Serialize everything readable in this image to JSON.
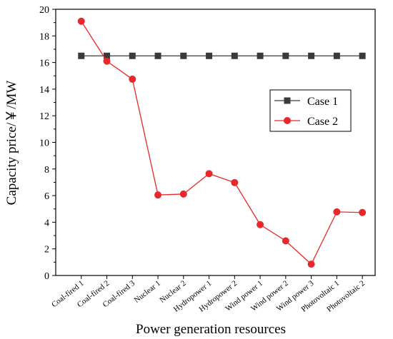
{
  "chart_data": {
    "type": "line",
    "xlabel": "Power generation resources",
    "ylabel": "Capacity price/￥/MW",
    "ylim": [
      0,
      20
    ],
    "yticks": [
      "0",
      "2",
      "4",
      "6",
      "8",
      "10",
      "12",
      "14",
      "16",
      "18",
      "20"
    ],
    "categories": [
      "Coal-fired 1",
      "Coal-fired 2",
      "Coal-fired 3",
      "Nuclear 1",
      "Nuclear 2",
      "Hydropower 1",
      "Hydropower 2",
      "Wind power 1",
      "Wind power 2",
      "Wind power 3",
      "Photovoltaic 1",
      "Photovoltaic 2"
    ],
    "series": [
      {
        "name": "Case 1",
        "color": "#3a3a3a",
        "marker": "square",
        "values": [
          16.5,
          16.5,
          16.5,
          16.5,
          16.5,
          16.5,
          16.5,
          16.5,
          16.5,
          16.5,
          16.5,
          16.5
        ]
      },
      {
        "name": "Case 2",
        "color": "#e8282b",
        "marker": "circle",
        "values": [
          19.1,
          16.1,
          14.75,
          6.05,
          6.12,
          7.65,
          6.98,
          3.82,
          2.6,
          0.85,
          4.78,
          4.73
        ]
      }
    ],
    "legend": "right",
    "grid": false
  }
}
